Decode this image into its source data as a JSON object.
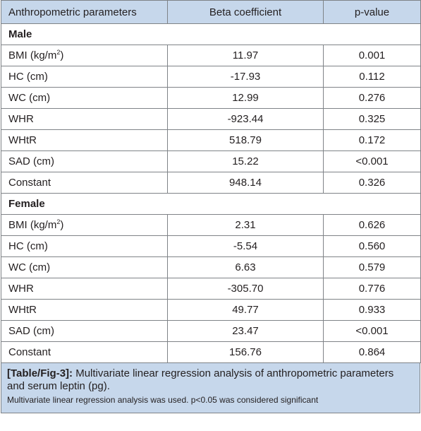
{
  "table": {
    "headers": [
      "Anthropometric parameters",
      "Beta coefficient",
      "p-value"
    ],
    "sections": [
      {
        "label": "Male",
        "rows": [
          {
            "param": "BMI (kg/m",
            "sup": "2",
            "tail": ")",
            "beta": "11.97",
            "p": "0.001"
          },
          {
            "param": "HC (cm)",
            "sup": "",
            "tail": "",
            "beta": "-17.93",
            "p": "0.112"
          },
          {
            "param": "WC (cm)",
            "sup": "",
            "tail": "",
            "beta": "12.99",
            "p": "0.276"
          },
          {
            "param": "WHR",
            "sup": "",
            "tail": "",
            "beta": "-923.44",
            "p": "0.325"
          },
          {
            "param": "WHtR",
            "sup": "",
            "tail": "",
            "beta": "518.79",
            "p": "0.172"
          },
          {
            "param": "SAD (cm)",
            "sup": "",
            "tail": "",
            "beta": "15.22",
            "p": "<0.001"
          },
          {
            "param": "Constant",
            "sup": "",
            "tail": "",
            "beta": "948.14",
            "p": "0.326"
          }
        ]
      },
      {
        "label": "Female",
        "rows": [
          {
            "param": "BMI (kg/m",
            "sup": "2",
            "tail": ")",
            "beta": "2.31",
            "p": "0.626"
          },
          {
            "param": "HC (cm)",
            "sup": "",
            "tail": "",
            "beta": "-5.54",
            "p": "0.560"
          },
          {
            "param": "WC (cm)",
            "sup": "",
            "tail": "",
            "beta": "6.63",
            "p": "0.579"
          },
          {
            "param": "WHR",
            "sup": "",
            "tail": "",
            "beta": "-305.70",
            "p": "0.776"
          },
          {
            "param": "WHtR",
            "sup": "",
            "tail": "",
            "beta": "49.77",
            "p": "0.933"
          },
          {
            "param": "SAD (cm)",
            "sup": "",
            "tail": "",
            "beta": "23.47",
            "p": "<0.001"
          },
          {
            "param": "Constant",
            "sup": "",
            "tail": "",
            "beta": "156.76",
            "p": "0.864"
          }
        ]
      }
    ]
  },
  "caption": {
    "tag": "[Table/Fig-3]:",
    "text": " Multivariate linear regression analysis of anthropometric parameters and serum leptin (pg).",
    "note": "Multivariate linear regression analysis was used. p<0.05 was considered significant"
  },
  "colors": {
    "header_bg": "#c6d7eb",
    "border": "#7f8387",
    "text": "#231f20"
  }
}
